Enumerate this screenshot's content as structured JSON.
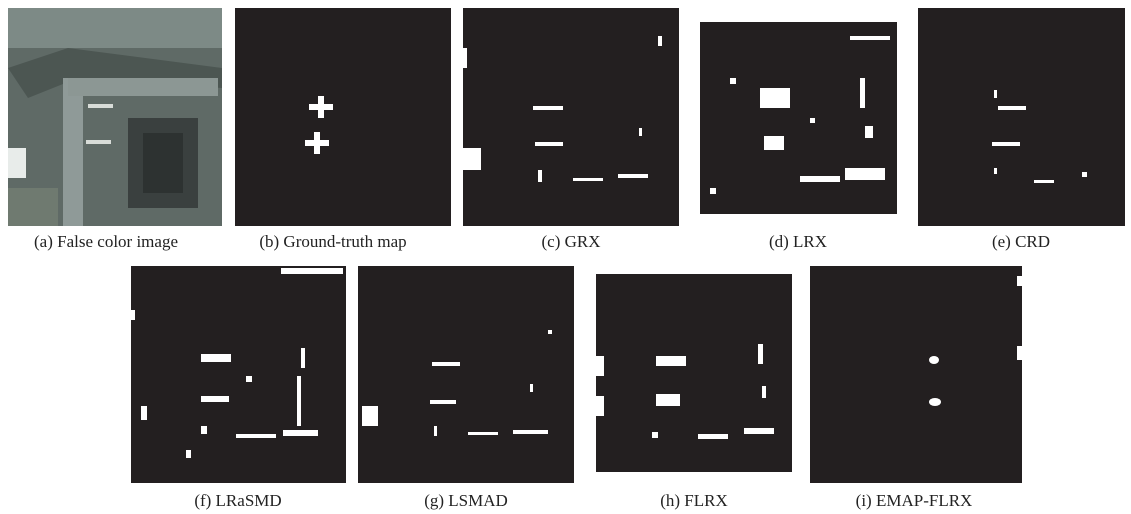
{
  "panels": [
    {
      "caption": "(a) False color image"
    },
    {
      "caption": "(b) Ground-truth map"
    },
    {
      "caption": "(c) GRX"
    },
    {
      "caption": "(d) LRX"
    },
    {
      "caption": "(e) CRD"
    },
    {
      "caption": "(f) LRaSMD"
    },
    {
      "caption": "(g) LSMAD"
    },
    {
      "caption": "(h) FLRX"
    },
    {
      "caption": "(i) EMAP-FLRX"
    }
  ]
}
